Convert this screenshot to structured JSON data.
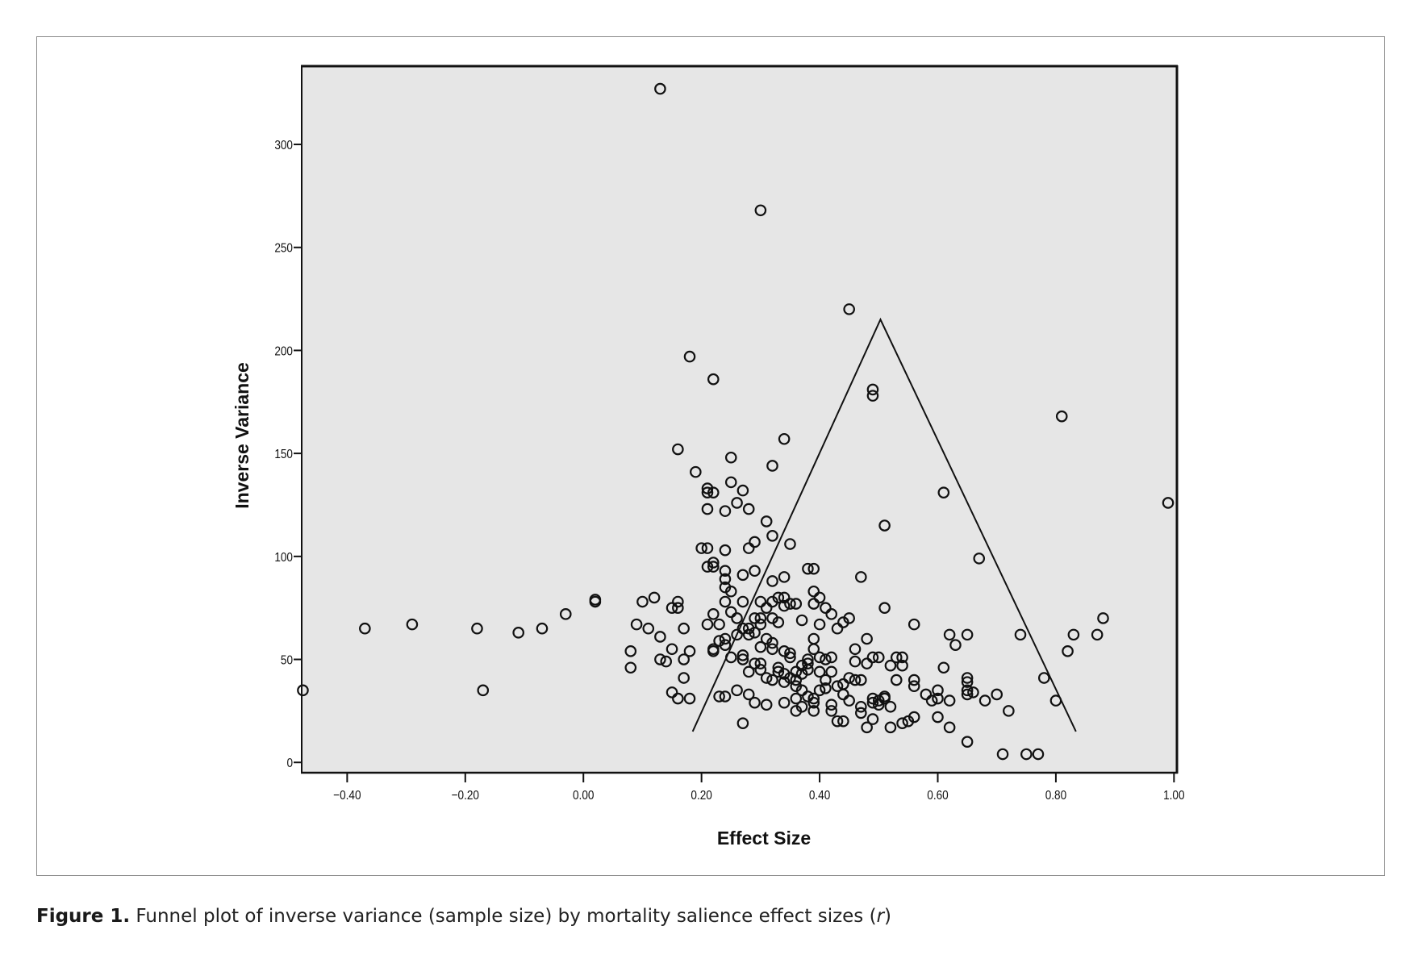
{
  "caption": {
    "label": "Figure 1.",
    "text": " Funnel plot of inverse variance (sample size) by mortality salience effect sizes (",
    "italic": "r",
    "end": ")"
  },
  "chart_data": {
    "type": "scatter",
    "title": "",
    "xlabel": "Effect Size",
    "ylabel": "Inverse Variance",
    "xlim": [
      -0.477,
      1.005
    ],
    "ylim": [
      -5,
      338
    ],
    "xticks": [
      -0.4,
      -0.2,
      0.0,
      0.2,
      0.4,
      0.6,
      0.8,
      1.0
    ],
    "xtick_labels": [
      "−0.40",
      "−0.20",
      "0.00",
      "0.20",
      "0.40",
      "0.60",
      "0.80",
      "1.00"
    ],
    "yticks": [
      0,
      50,
      100,
      150,
      200,
      250,
      300
    ],
    "ytick_labels": [
      "0",
      "50",
      "100",
      "150",
      "200",
      "250",
      "300"
    ],
    "grid": false,
    "background": "#e6e6e6",
    "marker": "open-circle",
    "funnel": [
      [
        0.185,
        15
      ],
      [
        0.503,
        215
      ],
      [
        0.834,
        15
      ]
    ],
    "points": [
      [
        0.13,
        327
      ],
      [
        0.3,
        268
      ],
      [
        0.45,
        220
      ],
      [
        0.18,
        197
      ],
      [
        0.22,
        186
      ],
      [
        0.49,
        181
      ],
      [
        0.49,
        178
      ],
      [
        0.81,
        168
      ],
      [
        0.34,
        157
      ],
      [
        0.16,
        152
      ],
      [
        0.25,
        148
      ],
      [
        0.32,
        144
      ],
      [
        0.19,
        141
      ],
      [
        0.25,
        136
      ],
      [
        0.21,
        133
      ],
      [
        0.21,
        131
      ],
      [
        0.22,
        131
      ],
      [
        0.27,
        132
      ],
      [
        0.61,
        131
      ],
      [
        0.26,
        126
      ],
      [
        0.99,
        126
      ],
      [
        0.21,
        123
      ],
      [
        0.24,
        122
      ],
      [
        0.28,
        123
      ],
      [
        0.31,
        117
      ],
      [
        0.51,
        115
      ],
      [
        0.32,
        110
      ],
      [
        0.29,
        107
      ],
      [
        0.35,
        106
      ],
      [
        0.2,
        104
      ],
      [
        0.21,
        104
      ],
      [
        0.28,
        104
      ],
      [
        0.24,
        103
      ],
      [
        0.67,
        99
      ],
      [
        0.21,
        95
      ],
      [
        0.22,
        97
      ],
      [
        0.22,
        95
      ],
      [
        0.24,
        93
      ],
      [
        0.29,
        93
      ],
      [
        0.27,
        91
      ],
      [
        0.38,
        94
      ],
      [
        0.39,
        94
      ],
      [
        0.34,
        90
      ],
      [
        0.47,
        90
      ],
      [
        0.32,
        88
      ],
      [
        0.24,
        89
      ],
      [
        0.24,
        85
      ],
      [
        0.25,
        83
      ],
      [
        0.39,
        83
      ],
      [
        0.4,
        80
      ],
      [
        0.12,
        80
      ],
      [
        0.1,
        78
      ],
      [
        0.02,
        79
      ],
      [
        0.02,
        78
      ],
      [
        0.16,
        78
      ],
      [
        0.16,
        75
      ],
      [
        0.15,
        75
      ],
      [
        0.24,
        78
      ],
      [
        0.27,
        78
      ],
      [
        0.3,
        78
      ],
      [
        0.32,
        78
      ],
      [
        0.33,
        80
      ],
      [
        0.34,
        80
      ],
      [
        0.35,
        77
      ],
      [
        0.36,
        77
      ],
      [
        0.34,
        76
      ],
      [
        0.31,
        75
      ],
      [
        0.39,
        77
      ],
      [
        0.41,
        75
      ],
      [
        0.42,
        72
      ],
      [
        0.51,
        75
      ],
      [
        0.22,
        72
      ],
      [
        0.25,
        73
      ],
      [
        0.26,
        70
      ],
      [
        -0.03,
        72
      ],
      [
        -0.37,
        65
      ],
      [
        -0.29,
        67
      ],
      [
        -0.18,
        65
      ],
      [
        -0.11,
        63
      ],
      [
        -0.07,
        65
      ],
      [
        -0.17,
        35
      ],
      [
        0.09,
        67
      ],
      [
        0.11,
        65
      ],
      [
        0.13,
        61
      ],
      [
        0.17,
        65
      ],
      [
        0.21,
        67
      ],
      [
        0.23,
        67
      ],
      [
        0.27,
        65
      ],
      [
        0.28,
        65
      ],
      [
        0.29,
        63
      ],
      [
        0.3,
        67
      ],
      [
        0.33,
        68
      ],
      [
        0.37,
        69
      ],
      [
        0.4,
        67
      ],
      [
        0.44,
        68
      ],
      [
        0.45,
        70
      ],
      [
        0.43,
        65
      ],
      [
        0.56,
        67
      ],
      [
        0.48,
        60
      ],
      [
        0.29,
        70
      ],
      [
        0.3,
        70
      ],
      [
        0.32,
        70
      ],
      [
        0.62,
        62
      ],
      [
        0.65,
        62
      ],
      [
        0.63,
        57
      ],
      [
        0.74,
        62
      ],
      [
        0.83,
        62
      ],
      [
        0.87,
        62
      ],
      [
        0.88,
        70
      ],
      [
        0.82,
        54
      ],
      [
        0.08,
        54
      ],
      [
        0.08,
        46
      ],
      [
        0.13,
        50
      ],
      [
        0.14,
        49
      ],
      [
        0.15,
        55
      ],
      [
        0.17,
        50
      ],
      [
        0.18,
        54
      ],
      [
        0.17,
        41
      ],
      [
        0.15,
        34
      ],
      [
        0.16,
        31
      ],
      [
        0.18,
        31
      ],
      [
        0.22,
        55
      ],
      [
        0.22,
        54
      ],
      [
        0.23,
        59
      ],
      [
        0.24,
        60
      ],
      [
        0.24,
        57
      ],
      [
        0.25,
        51
      ],
      [
        0.27,
        52
      ],
      [
        0.27,
        50
      ],
      [
        0.28,
        44
      ],
      [
        0.29,
        48
      ],
      [
        0.3,
        56
      ],
      [
        0.3,
        48
      ],
      [
        0.31,
        41
      ],
      [
        0.32,
        58
      ],
      [
        0.32,
        55
      ],
      [
        0.33,
        46
      ],
      [
        0.33,
        44
      ],
      [
        0.34,
        54
      ],
      [
        0.35,
        53
      ],
      [
        0.35,
        51
      ],
      [
        0.35,
        41
      ],
      [
        0.34,
        39
      ],
      [
        0.36,
        37
      ],
      [
        0.36,
        44
      ],
      [
        0.37,
        47
      ],
      [
        0.37,
        43
      ],
      [
        0.38,
        50
      ],
      [
        0.38,
        48
      ],
      [
        0.38,
        45
      ],
      [
        0.39,
        55
      ],
      [
        0.39,
        60
      ],
      [
        0.4,
        51
      ],
      [
        0.4,
        44
      ],
      [
        0.41,
        50
      ],
      [
        0.41,
        40
      ],
      [
        0.42,
        51
      ],
      [
        0.42,
        44
      ],
      [
        0.43,
        37
      ],
      [
        0.44,
        33
      ],
      [
        0.45,
        30
      ],
      [
        0.45,
        41
      ],
      [
        0.46,
        55
      ],
      [
        0.46,
        40
      ],
      [
        0.46,
        49
      ],
      [
        0.47,
        40
      ],
      [
        0.48,
        48
      ],
      [
        0.49,
        51
      ],
      [
        0.5,
        51
      ],
      [
        0.52,
        47
      ],
      [
        0.53,
        51
      ],
      [
        0.54,
        51
      ],
      [
        0.54,
        47
      ],
      [
        0.53,
        40
      ],
      [
        0.56,
        40
      ],
      [
        0.56,
        37
      ],
      [
        0.58,
        33
      ],
      [
        0.59,
        30
      ],
      [
        0.6,
        35
      ],
      [
        0.6,
        31
      ],
      [
        0.61,
        46
      ],
      [
        0.62,
        30
      ],
      [
        0.65,
        41
      ],
      [
        0.65,
        39
      ],
      [
        0.65,
        35
      ],
      [
        0.65,
        33
      ],
      [
        0.66,
        34
      ],
      [
        0.68,
        30
      ],
      [
        0.7,
        33
      ],
      [
        0.72,
        25
      ],
      [
        0.78,
        41
      ],
      [
        0.8,
        30
      ],
      [
        0.24,
        32
      ],
      [
        0.23,
        32
      ],
      [
        0.26,
        35
      ],
      [
        0.28,
        33
      ],
      [
        0.29,
        29
      ],
      [
        0.31,
        28
      ],
      [
        0.34,
        29
      ],
      [
        0.36,
        25
      ],
      [
        0.36,
        31
      ],
      [
        0.37,
        27
      ],
      [
        0.39,
        25
      ],
      [
        0.39,
        29
      ],
      [
        0.39,
        31
      ],
      [
        0.42,
        25
      ],
      [
        0.42,
        28
      ],
      [
        0.43,
        20
      ],
      [
        0.44,
        20
      ],
      [
        0.47,
        24
      ],
      [
        0.47,
        27
      ],
      [
        0.48,
        17
      ],
      [
        0.49,
        21
      ],
      [
        0.49,
        31
      ],
      [
        0.49,
        29
      ],
      [
        0.5,
        30
      ],
      [
        0.5,
        28
      ],
      [
        0.51,
        31
      ],
      [
        0.51,
        32
      ],
      [
        0.52,
        27
      ],
      [
        0.52,
        17
      ],
      [
        0.54,
        19
      ],
      [
        0.55,
        20
      ],
      [
        0.56,
        22
      ],
      [
        0.6,
        22
      ],
      [
        0.62,
        17
      ],
      [
        0.65,
        10
      ],
      [
        0.71,
        4
      ],
      [
        0.75,
        4
      ],
      [
        0.77,
        4
      ],
      [
        0.27,
        19
      ],
      [
        0.31,
        60
      ],
      [
        0.26,
        62
      ],
      [
        0.28,
        62
      ],
      [
        0.3,
        45
      ],
      [
        0.32,
        40
      ],
      [
        0.34,
        43
      ],
      [
        0.36,
        40
      ],
      [
        0.37,
        35
      ],
      [
        0.38,
        32
      ],
      [
        0.4,
        35
      ],
      [
        0.41,
        36
      ],
      [
        0.44,
        38
      ],
      [
        -0.475,
        35
      ]
    ]
  }
}
